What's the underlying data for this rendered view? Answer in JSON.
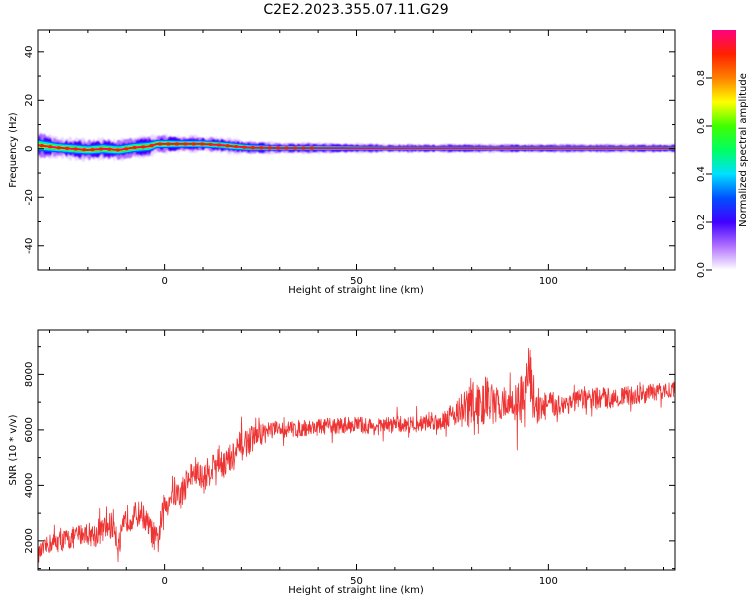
{
  "title": "C2E2.2023.355.07.11.G29",
  "chart_data": [
    {
      "type": "heatmap",
      "xlabel": "Height of straight line (km)",
      "ylabel": "Frequency (Hz)",
      "xlim": [
        -33,
        133
      ],
      "ylim": [
        -50,
        49
      ],
      "x_ticks": [
        0,
        50,
        100
      ],
      "x_tick_labels": [
        "0",
        "50",
        "100"
      ],
      "y_ticks": [
        40,
        20,
        0,
        -20,
        -40
      ],
      "y_tick_labels": [
        "40",
        "20",
        "0",
        "-20",
        "-40"
      ],
      "grid": false,
      "ridge": {
        "x": [
          -33,
          -28,
          -24,
          -20,
          -16,
          -12,
          -8,
          -4,
          -2,
          0,
          5,
          10,
          15,
          18,
          22,
          30,
          40,
          60,
          80,
          100,
          120,
          133
        ],
        "y": [
          1.5,
          0.5,
          0,
          -0.5,
          0,
          -0.5,
          0.5,
          1,
          2,
          2,
          2,
          2,
          1.5,
          1,
          0.5,
          0.3,
          0.3,
          0.2,
          0.2,
          0.2,
          0.2,
          0.2
        ],
        "spread": [
          5,
          4,
          4,
          4,
          4,
          4,
          4,
          4,
          3.5,
          3.5,
          3,
          3,
          3,
          3,
          2.5,
          2,
          2,
          1.6,
          1.6,
          1.6,
          1.6,
          1.6
        ]
      },
      "colorbar": {
        "label": "Normalized spectral amplitude",
        "ticks": [
          0.0,
          0.2,
          0.4,
          0.6,
          0.8
        ],
        "tick_labels": [
          "0.0",
          "0.2",
          "0.4",
          "0.6",
          "0.8"
        ],
        "range": [
          0,
          1
        ],
        "colors": [
          "#ffffff",
          "#b070ff",
          "#4000ff",
          "#0050ff",
          "#00e0ff",
          "#00ff60",
          "#40ff00",
          "#ffff00",
          "#ff8000",
          "#ff2000",
          "#ff0080"
        ]
      }
    },
    {
      "type": "line",
      "xlabel": "Height of straight line (km)",
      "ylabel": "SNR (10 * v/v)",
      "xlim": [
        -33,
        133
      ],
      "ylim": [
        950,
        9600
      ],
      "x_ticks": [
        0,
        50,
        100
      ],
      "x_tick_labels": [
        "0",
        "50",
        "100"
      ],
      "y_ticks": [
        2000,
        4000,
        6000,
        8000
      ],
      "y_tick_labels": [
        "2000",
        "4000",
        "6000",
        "8000"
      ],
      "grid": false,
      "series": [
        {
          "color": "#ee3333",
          "x": [
            -33,
            -30,
            -27,
            -24,
            -21,
            -18,
            -15,
            -13,
            -12,
            -10,
            -8,
            -6,
            -4,
            -2,
            0,
            2,
            4,
            6,
            8,
            10,
            12,
            14,
            16,
            18,
            20,
            22,
            24,
            26,
            28,
            30,
            35,
            40,
            45,
            50,
            55,
            60,
            65,
            70,
            72,
            75,
            78,
            80,
            82,
            84,
            86,
            88,
            90,
            92,
            94,
            95,
            96,
            98,
            100,
            103,
            106,
            110,
            115,
            120,
            125,
            130,
            133
          ],
          "y": [
            1500,
            1900,
            2000,
            2100,
            2300,
            2200,
            2500,
            2600,
            1700,
            2800,
            2900,
            3000,
            2500,
            1900,
            3200,
            3800,
            3600,
            4200,
            4500,
            4200,
            4600,
            4900,
            4800,
            5000,
            5400,
            5600,
            5800,
            5900,
            6000,
            6000,
            6050,
            6100,
            6150,
            6200,
            6100,
            6200,
            6200,
            6300,
            6300,
            6600,
            6700,
            6900,
            6700,
            7200,
            6800,
            7000,
            6900,
            7000,
            7100,
            8300,
            7200,
            6800,
            6900,
            6900,
            7000,
            7100,
            7150,
            7200,
            7300,
            7400,
            7500
          ],
          "amp": [
            300,
            350,
            400,
            400,
            400,
            450,
            450,
            600,
            600,
            500,
            500,
            450,
            450,
            600,
            600,
            600,
            550,
            550,
            550,
            550,
            550,
            550,
            600,
            600,
            550,
            500,
            450,
            400,
            350,
            300,
            300,
            300,
            300,
            300,
            300,
            300,
            300,
            300,
            350,
            400,
            700,
            1200,
            900,
            800,
            700,
            600,
            600,
            800,
            1000,
            1100,
            900,
            600,
            500,
            400,
            400,
            400,
            400,
            350,
            350,
            300,
            300
          ]
        }
      ]
    }
  ]
}
